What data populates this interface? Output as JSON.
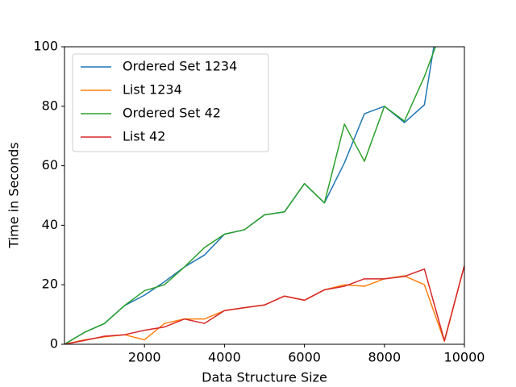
{
  "chart_data": {
    "type": "line",
    "x_label": "Data Structure Size",
    "y_label": "Time in Seconds",
    "x": [
      0,
      500,
      1000,
      1500,
      2000,
      2500,
      3000,
      3500,
      4000,
      4500,
      5000,
      5500,
      6000,
      6500,
      7000,
      7500,
      8000,
      8500,
      9000,
      9500,
      10000
    ],
    "series": [
      {
        "name": "Ordered Set 1234",
        "color": "#1f77b4",
        "values": [
          0,
          4,
          7,
          13,
          16.5,
          21,
          26,
          30,
          37,
          38.5,
          43.5,
          44.5,
          54,
          47.5,
          61,
          77.5,
          80,
          74.5,
          80.5,
          122,
          null
        ]
      },
      {
        "name": "List 1234",
        "color": "#ff7f0e",
        "values": [
          0,
          1.5,
          2.5,
          3.2,
          1.5,
          7,
          8.5,
          8.5,
          11.3,
          12.3,
          13.2,
          16.2,
          14.8,
          18.3,
          20,
          19.5,
          22,
          23,
          20,
          1,
          26.5
        ]
      },
      {
        "name": "Ordered Set 42",
        "color": "#2ca02c",
        "values": [
          0,
          4,
          7,
          13,
          18,
          20,
          26,
          32.5,
          37,
          38.5,
          43.5,
          44.5,
          54,
          47.5,
          74,
          61.5,
          80,
          75,
          90,
          108,
          null
        ]
      },
      {
        "name": "List 42",
        "color": "#d62728",
        "values": [
          0,
          1.3,
          2.7,
          3.2,
          4.7,
          5.8,
          8.5,
          7,
          11.3,
          12.3,
          13.2,
          16.2,
          14.8,
          18.3,
          19.5,
          22,
          22,
          22.8,
          25.3,
          1.2,
          26.5
        ]
      }
    ],
    "xlim": [
      0,
      10000
    ],
    "xticks": [
      2000,
      4000,
      6000,
      8000,
      10000
    ],
    "ylim": [
      0,
      100
    ],
    "yticks": [
      0,
      20,
      40,
      60,
      80,
      100
    ],
    "grid": false,
    "legend": "upper-left"
  }
}
